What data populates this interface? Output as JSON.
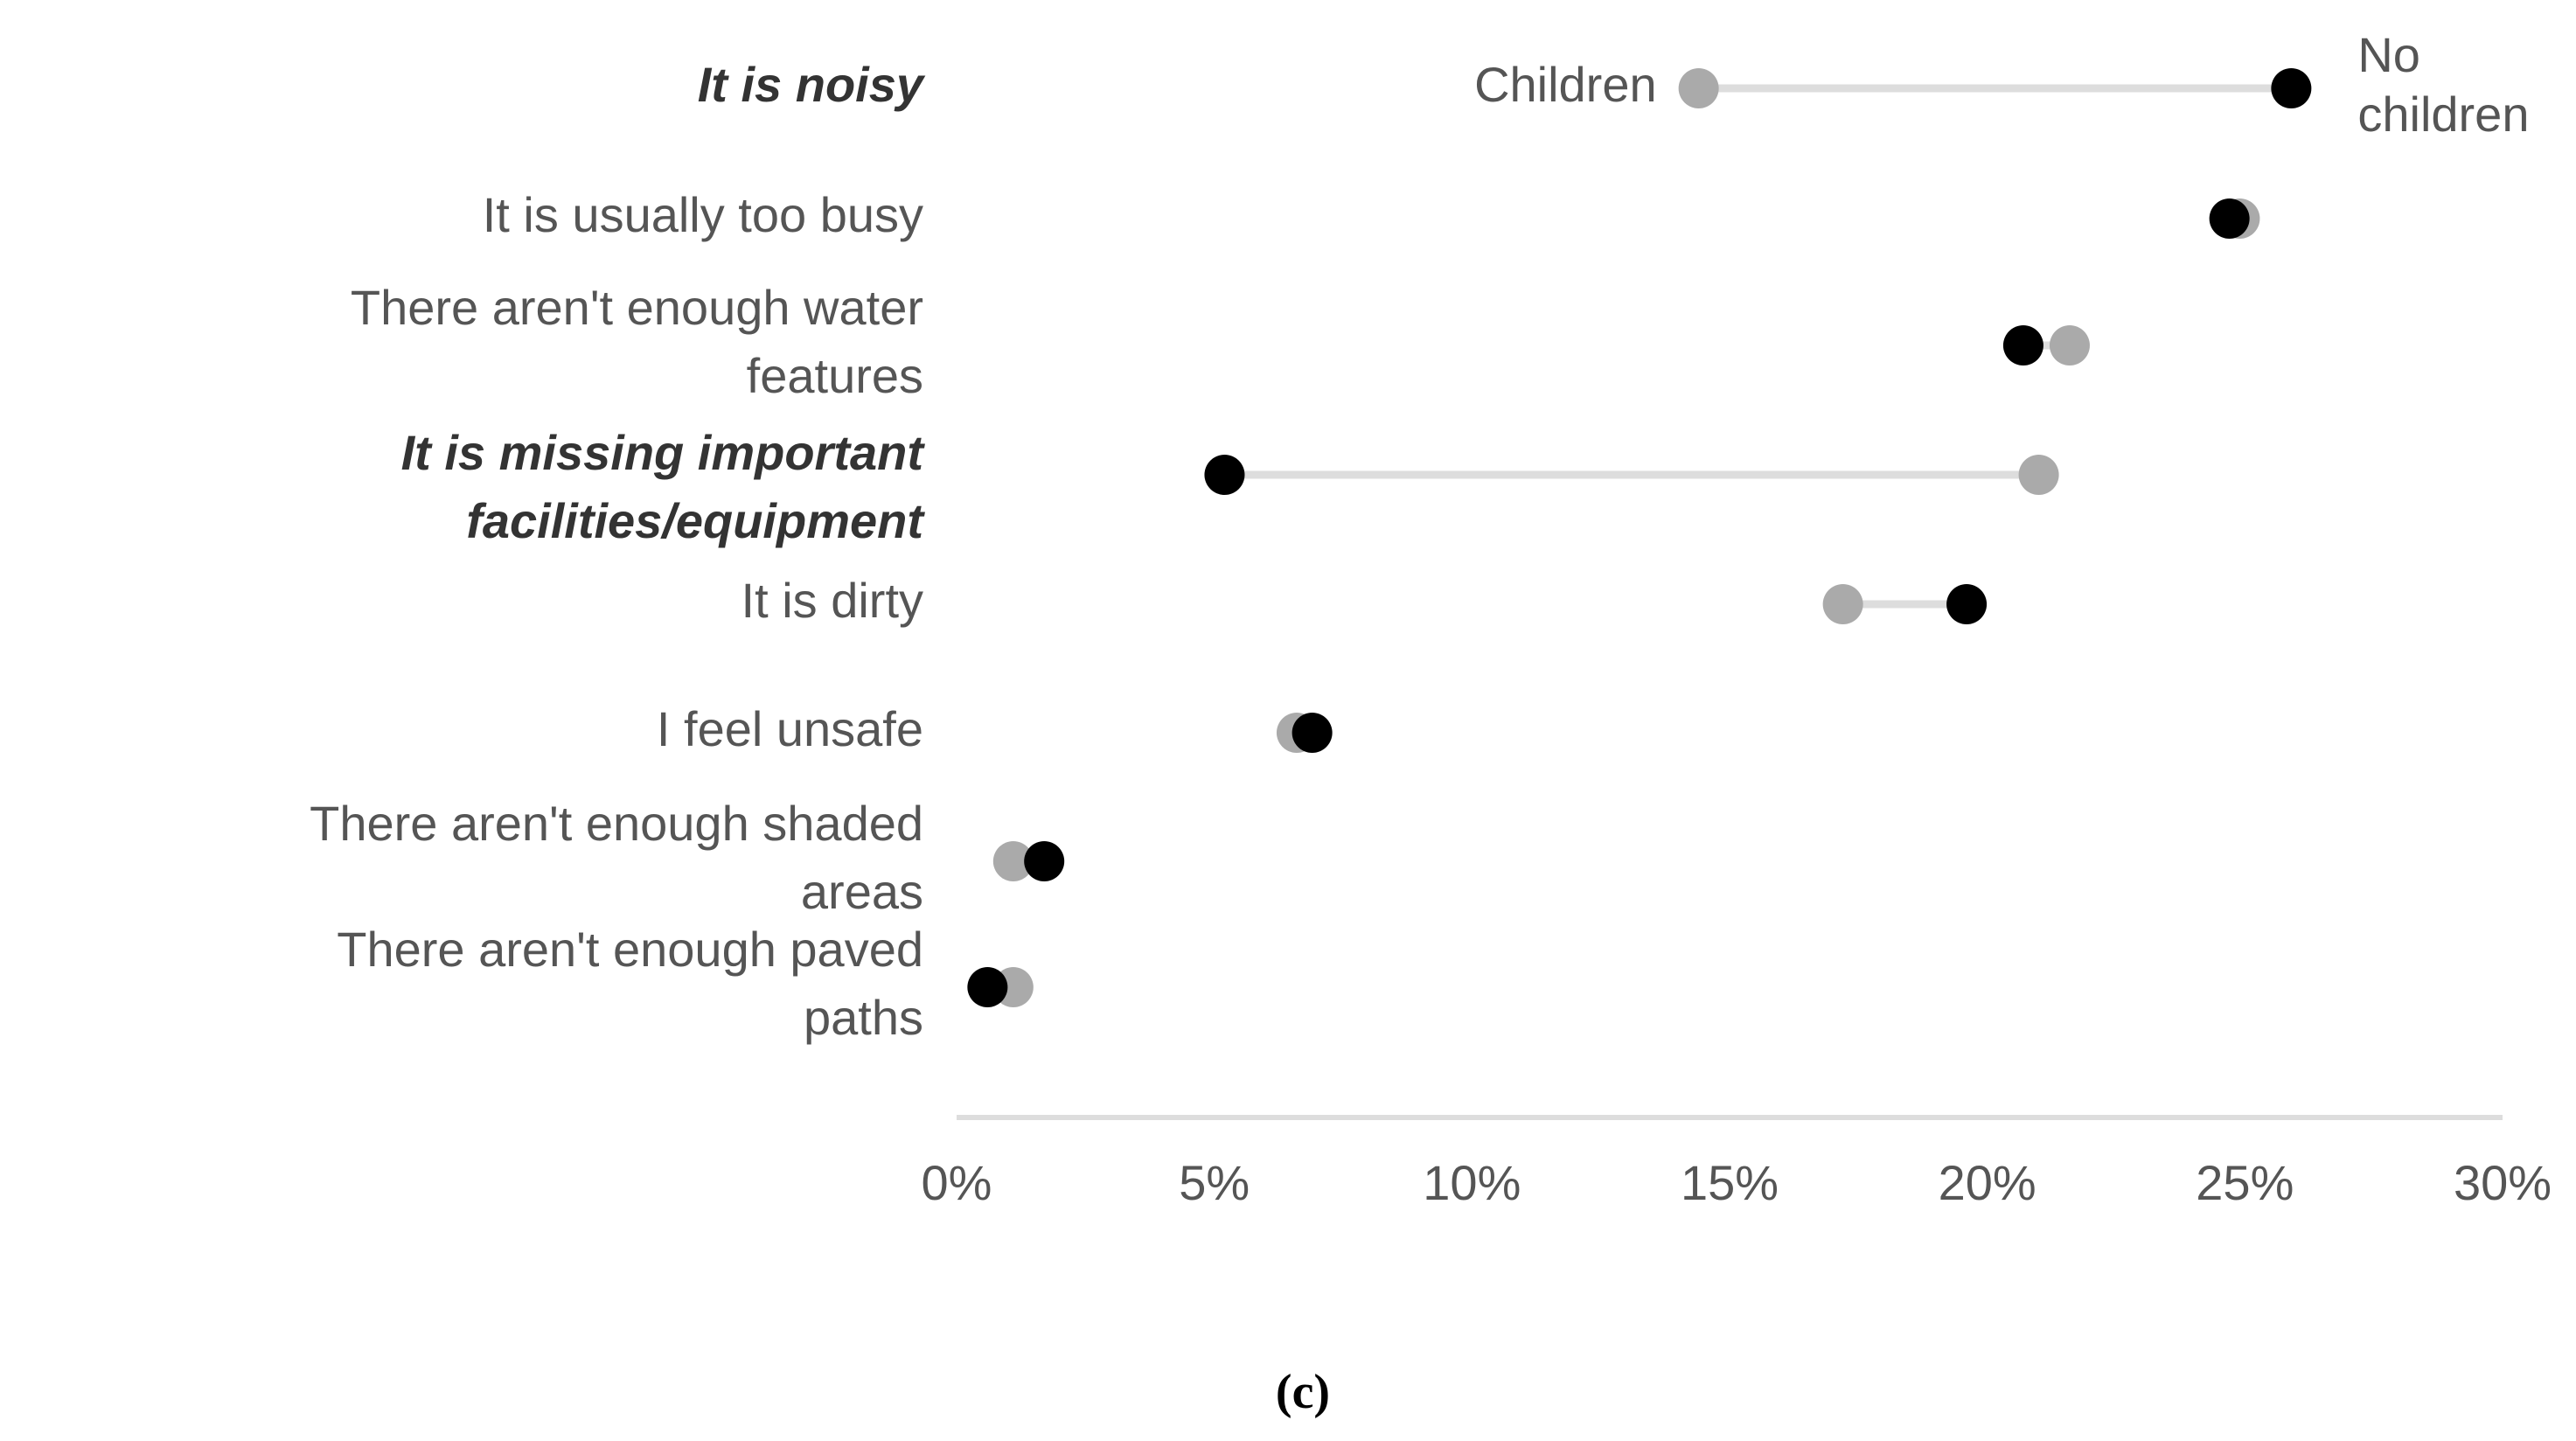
{
  "chart_data": {
    "type": "dumbbell",
    "categories": [
      "It is noisy",
      "It is usually too busy",
      "There aren't enough water features",
      "It is missing important facilities/equipment",
      "It is dirty",
      "I feel unsafe",
      "There aren't enough shaded areas",
      "There aren't enough paved paths"
    ],
    "emphasis": [
      true,
      false,
      false,
      true,
      false,
      false,
      false,
      false
    ],
    "series": [
      {
        "name": "Children",
        "color": "#aaaaaa",
        "values": [
          14.4,
          24.9,
          21.6,
          21.0,
          17.2,
          6.6,
          1.1,
          1.1
        ]
      },
      {
        "name": "No children",
        "color": "#000000",
        "values": [
          25.9,
          24.7,
          20.7,
          5.2,
          19.6,
          6.9,
          1.7,
          0.6
        ]
      }
    ],
    "xlim": [
      0,
      30
    ],
    "xticks": [
      {
        "value": 0,
        "label": "0%"
      },
      {
        "value": 5,
        "label": "5%"
      },
      {
        "value": 10,
        "label": "10%"
      },
      {
        "value": 15,
        "label": "15%"
      },
      {
        "value": 20,
        "label": "20%"
      },
      {
        "value": 25,
        "label": "25%"
      },
      {
        "value": 30,
        "label": "30%"
      }
    ],
    "connector_color": "#dddddd",
    "caption": "(c)"
  }
}
